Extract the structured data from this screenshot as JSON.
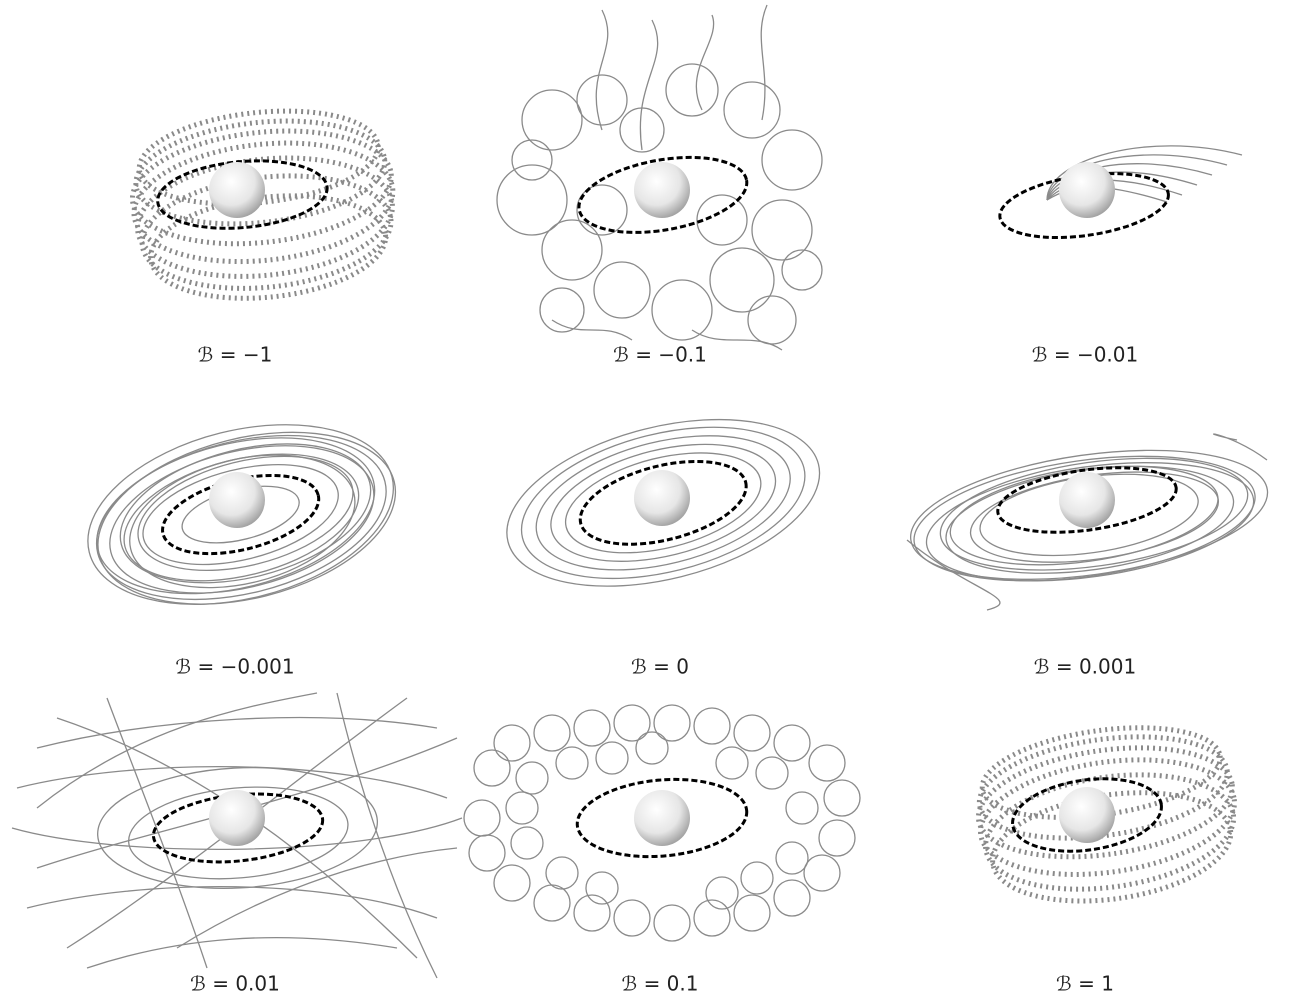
{
  "panels": [
    {
      "label": "ℬ = −1"
    },
    {
      "label": "ℬ = −0.1"
    },
    {
      "label": "ℬ = −0.01"
    },
    {
      "label": "ℬ = −0.001"
    },
    {
      "label": "ℬ = 0"
    },
    {
      "label": "ℬ = 0.001"
    },
    {
      "label": "ℬ = 0.01"
    },
    {
      "label": "ℬ = 0.1"
    },
    {
      "label": "ℬ = 1"
    }
  ]
}
